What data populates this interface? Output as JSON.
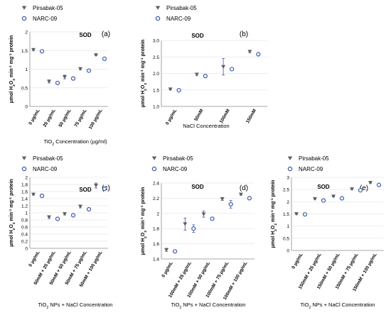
{
  "figure": {
    "markers": {
      "pirsabak": "filled-triangle-down",
      "narc": "open-circle"
    },
    "colors": {
      "pirsabak": "#5f5f5f",
      "narc": "#3c5aa8",
      "error_bar": "#3c5aa8",
      "axis": "#8c8c8c",
      "grid": "#e6e6e6"
    }
  },
  "chart_data": [
    {
      "type": "scatter",
      "panel_label": "(a)",
      "title": "SOD",
      "xlabel": "TiO₂ Concentration (µg/ml)",
      "ylabel": "µmol H₂O₂ min⁻¹ mg⁻¹ protein",
      "legend": [
        "Pirsabak-05",
        "NARC-09"
      ],
      "ylim": [
        0,
        2
      ],
      "yticks": [
        "0",
        "0.5",
        "1",
        "1.5",
        "2"
      ],
      "categories": [
        "0 µg/mL",
        "25 µg/mL",
        "50 µg/mL",
        "75 µg/mL",
        "100 µg/mL"
      ],
      "series": [
        {
          "name": "Pirsabak-05",
          "values": [
            1.52,
            0.67,
            0.79,
            1.01,
            1.38
          ],
          "errors": [
            0.02,
            0.04,
            0.05,
            0.03,
            0.02
          ]
        },
        {
          "name": "NARC-09",
          "values": [
            1.48,
            0.63,
            0.75,
            0.96,
            1.28
          ],
          "errors": [
            0.02,
            0.02,
            0.02,
            0.02,
            0.02
          ]
        }
      ]
    },
    {
      "type": "scatter",
      "panel_label": "(b)",
      "title": "SOD",
      "xlabel": "NaCl Concentration",
      "ylabel": "µmol H₂O₂ min⁻¹ mg⁻¹ protein",
      "legend": [
        "Pirsabak-05",
        "NARC-09"
      ],
      "ylim": [
        1.0,
        3.0
      ],
      "yticks": [
        "1.0",
        "1.5",
        "2.0",
        "2.5",
        "3.0"
      ],
      "categories": [
        "0 µg/mL",
        "50mM",
        "100mM",
        "150mM"
      ],
      "series": [
        {
          "name": "Pirsabak-05",
          "values": [
            1.52,
            1.97,
            2.2,
            2.66
          ],
          "errors": [
            0.02,
            0.04,
            0.25,
            0.03
          ]
        },
        {
          "name": "NARC-09",
          "values": [
            1.49,
            1.92,
            2.13,
            2.58
          ],
          "errors": [
            0.02,
            0.05,
            0.03,
            0.03
          ]
        }
      ]
    },
    {
      "type": "scatter",
      "panel_label": "(c)",
      "title": "SOD",
      "xlabel": "TiO₂ NPs + NaCl Concentration",
      "ylabel": "µmol H₂O₂ min⁻¹ mg⁻¹ protein",
      "legend": [
        "Pirsabak-05",
        "NARC-09"
      ],
      "ylim": [
        0,
        2
      ],
      "yticks": [
        "0",
        "0.2",
        "0.4",
        "0.6",
        "0.8",
        "1",
        "1.2",
        "1.4",
        "1.6",
        "1.8",
        "2"
      ],
      "categories": [
        "0 µg/mL",
        "50mM + 25 µg/mL",
        "50mM + 50 µg/mL",
        "50mM + 75 µg/mL",
        "50mM + 100 µg/mL"
      ],
      "series": [
        {
          "name": "Pirsabak-05",
          "values": [
            1.52,
            0.88,
            0.97,
            1.18,
            1.77
          ],
          "errors": [
            0.02,
            0.04,
            0.03,
            0.04,
            0.07
          ]
        },
        {
          "name": "NARC-09",
          "values": [
            1.48,
            0.83,
            0.93,
            1.1,
            1.68
          ],
          "errors": [
            0.02,
            0.02,
            0.03,
            0.04,
            0.02
          ]
        }
      ]
    },
    {
      "type": "scatter",
      "panel_label": "(d)",
      "title": "SOD",
      "xlabel": "TiO₂ NPs + NaCl Concentration",
      "ylabel": "µmol H₂O₂ min⁻¹ mg⁻¹ protein",
      "legend": [
        "Pirsabak-05",
        "NARC-09"
      ],
      "ylim": [
        1.4,
        2.4
      ],
      "yticks": [
        "1.4",
        "1.6",
        "1.8",
        "2",
        "2.2",
        "2.4"
      ],
      "categories": [
        "0 µg/mL",
        "100mM + 25 µg/mL",
        "100mM + 50 µg/mL",
        "100mM + 75 µg/mL",
        "100mM + 100 µg/mL"
      ],
      "series": [
        {
          "name": "Pirsabak-05",
          "values": [
            1.52,
            1.86,
            1.99,
            2.19,
            2.25
          ],
          "errors": [
            0.02,
            0.08,
            0.04,
            0.02,
            0.01
          ]
        },
        {
          "name": "NARC-09",
          "values": [
            1.5,
            1.8,
            1.93,
            2.12,
            2.2
          ],
          "errors": [
            0.01,
            0.05,
            0.02,
            0.05,
            0.02
          ]
        }
      ]
    },
    {
      "type": "scatter",
      "panel_label": "(e)",
      "title": "SOD",
      "xlabel": "TiO₂ NPs + NaCl Concentration",
      "ylabel": "µmol H₂O₂ min⁻¹ mg⁻¹ protein",
      "legend": [
        "Pirsabak-05",
        "NARC-09"
      ],
      "ylim": [
        0,
        3
      ],
      "yticks": [
        "0",
        "0.5",
        "1",
        "1.5",
        "2",
        "2.5",
        "3"
      ],
      "categories": [
        "0 µg/mL",
        "150mM + 25 µg/mL",
        "150mM + 50 µg/mL",
        "150mM + 75 µg/mL",
        "150mM + 100 µg/mL"
      ],
      "series": [
        {
          "name": "Pirsabak-05",
          "values": [
            1.5,
            2.12,
            2.22,
            2.52,
            2.78
          ],
          "errors": [
            0.02,
            0.03,
            0.02,
            0.02,
            0.02
          ]
        },
        {
          "name": "NARC-09",
          "values": [
            1.48,
            2.05,
            2.14,
            2.47,
            2.69
          ],
          "errors": [
            0.02,
            0.02,
            0.02,
            0.02,
            0.02
          ]
        }
      ]
    }
  ]
}
